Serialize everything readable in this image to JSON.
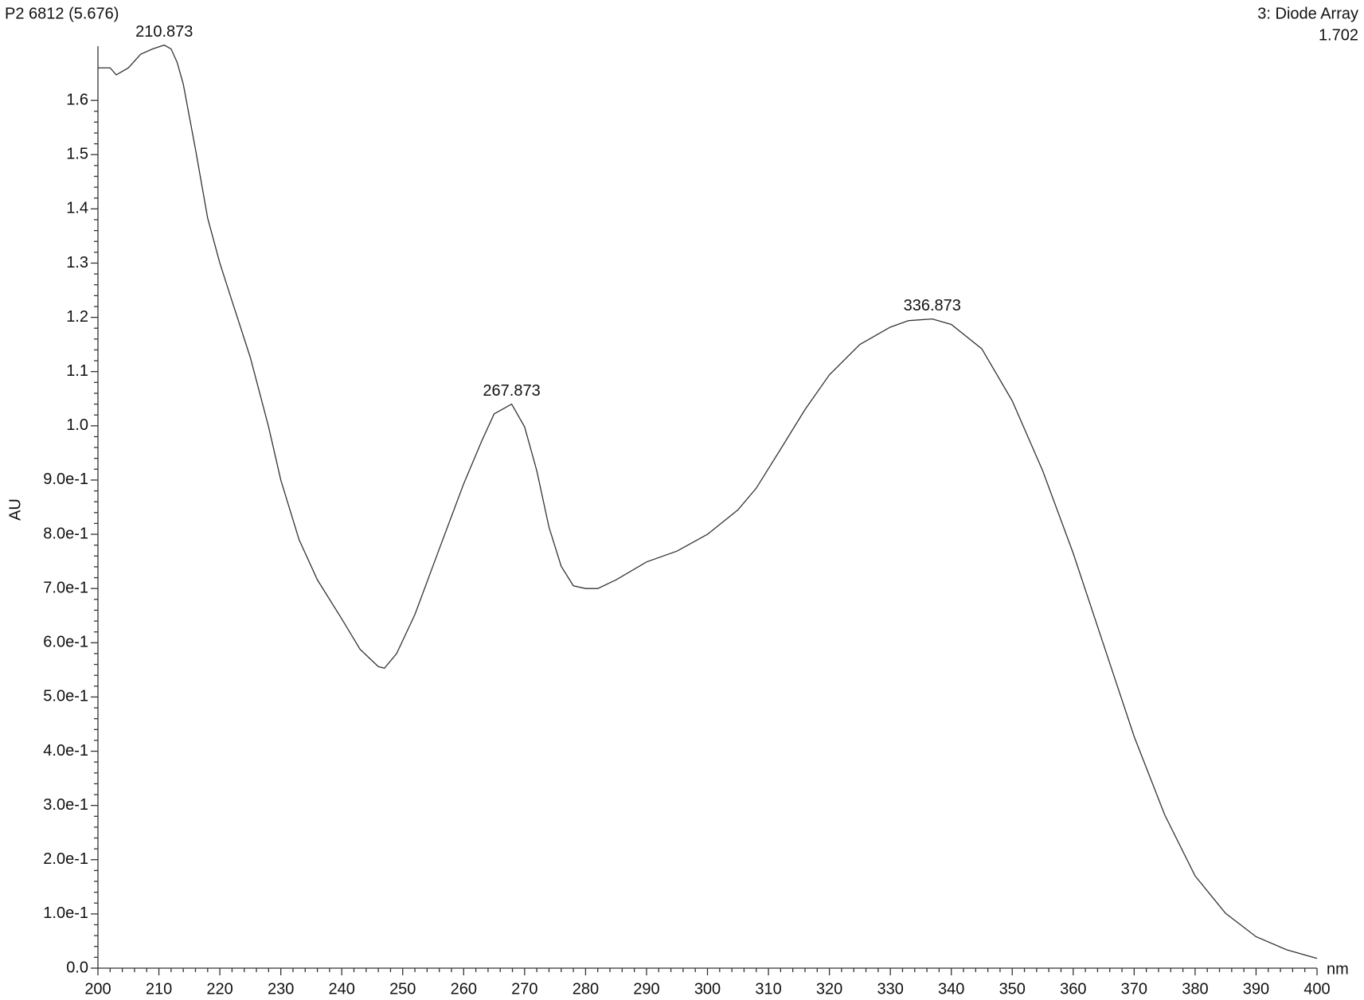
{
  "chart_data": {
    "type": "line",
    "trace_title": "P2 6812 (5.676)",
    "detector": "3: Diode Array",
    "max_value": 1.702,
    "x_label": "nm",
    "y_label": "AU",
    "color": "#333333",
    "x": [
      200,
      201,
      202,
      203,
      205,
      207,
      209,
      210.873,
      212,
      213,
      214,
      216,
      218,
      220,
      222,
      225,
      228,
      230,
      233,
      236,
      240,
      243,
      246,
      247,
      249,
      252,
      256,
      260,
      263,
      265,
      267.873,
      270,
      272,
      274,
      276,
      278,
      280,
      282,
      285,
      290,
      295,
      300,
      305,
      308,
      312,
      316,
      320,
      325,
      330,
      333,
      336.873,
      340,
      345,
      350,
      355,
      360,
      365,
      370,
      375,
      380,
      385,
      390,
      395,
      400
    ],
    "values": [
      1.66,
      1.66,
      1.66,
      1.647,
      1.66,
      1.685,
      1.695,
      1.702,
      1.695,
      1.67,
      1.63,
      1.51,
      1.383,
      1.3,
      1.23,
      1.126,
      0.998,
      0.9,
      0.79,
      0.716,
      0.644,
      0.588,
      0.556,
      0.553,
      0.58,
      0.652,
      0.773,
      0.893,
      0.973,
      1.022,
      1.04,
      0.998,
      0.917,
      0.813,
      0.741,
      0.705,
      0.7,
      0.7,
      0.716,
      0.749,
      0.769,
      0.8,
      0.845,
      0.885,
      0.957,
      1.03,
      1.094,
      1.15,
      1.182,
      1.194,
      1.197,
      1.187,
      1.142,
      1.046,
      0.917,
      0.765,
      0.596,
      0.427,
      0.283,
      0.17,
      0.101,
      0.058,
      0.034,
      0.018
    ],
    "peaks": [
      210.873,
      267.873,
      336.873
    ],
    "xlim": [
      200,
      400
    ],
    "ylim": [
      0,
      1.7
    ],
    "xticks": [
      200,
      210,
      220,
      230,
      240,
      250,
      260,
      270,
      280,
      290,
      300,
      310,
      320,
      330,
      340,
      350,
      360,
      370,
      380,
      390,
      400
    ],
    "yticks": [
      {
        "value": 0,
        "label": "0.0"
      },
      {
        "value": 0.1,
        "label": "1.0e-1"
      },
      {
        "value": 0.2,
        "label": "2.0e-1"
      },
      {
        "value": 0.3,
        "label": "3.0e-1"
      },
      {
        "value": 0.4,
        "label": "4.0e-1"
      },
      {
        "value": 0.5,
        "label": "5.0e-1"
      },
      {
        "value": 0.6,
        "label": "6.0e-1"
      },
      {
        "value": 0.7,
        "label": "7.0e-1"
      },
      {
        "value": 0.8,
        "label": "8.0e-1"
      },
      {
        "value": 0.9,
        "label": "9.0e-1"
      },
      {
        "value": 1,
        "label": "1.0"
      },
      {
        "value": 1.1,
        "label": "1.1"
      },
      {
        "value": 1.2,
        "label": "1.2"
      },
      {
        "value": 1.3,
        "label": "1.3"
      },
      {
        "value": 1.4,
        "label": "1.4"
      },
      {
        "value": 1.5,
        "label": "1.5"
      },
      {
        "value": 1.6,
        "label": "1.6"
      }
    ]
  }
}
